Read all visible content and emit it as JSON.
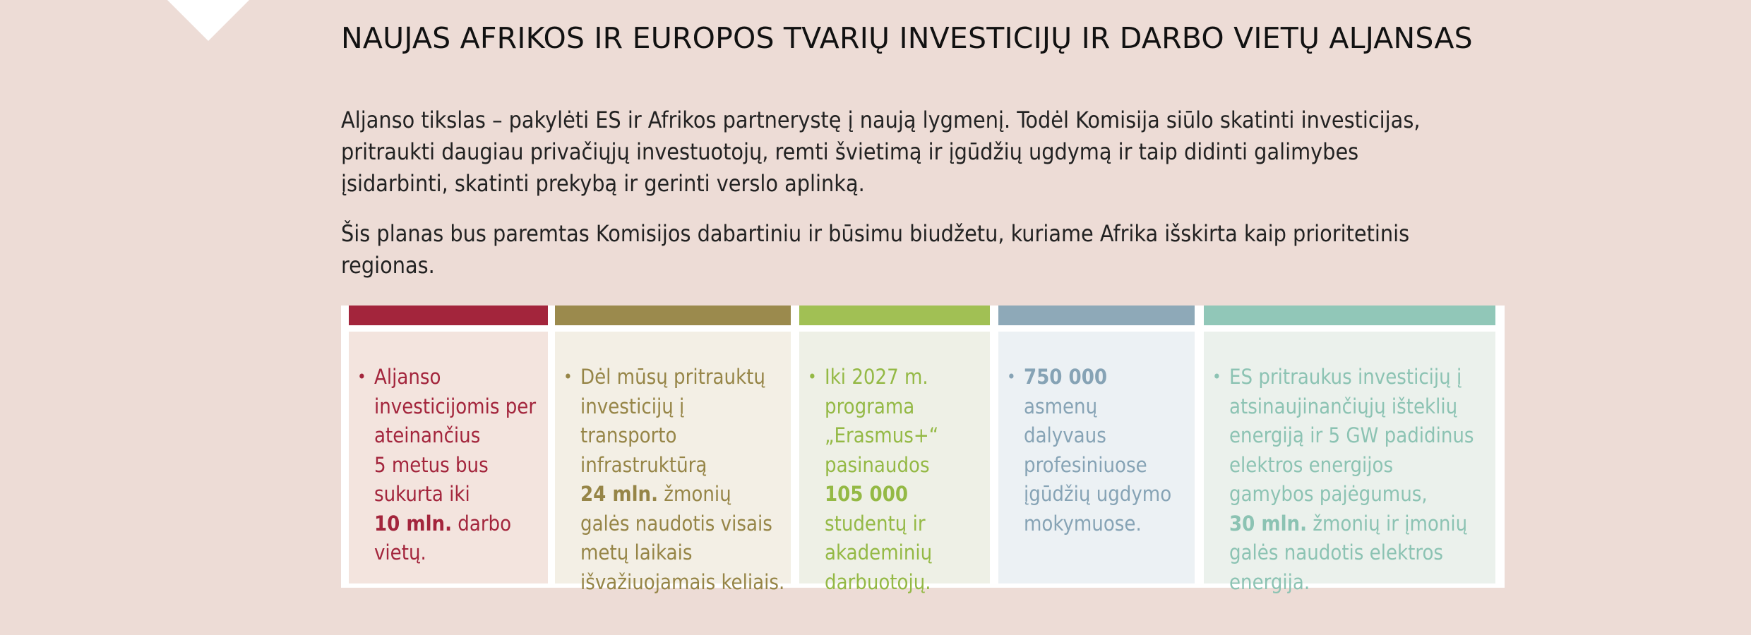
{
  "title": "NAUJAS AFRIKOS IR EUROPOS TVARIŲ INVESTICIJŲ IR DARBO VIETŲ ALJANSAS",
  "paragraphs": [
    {
      "lines": [
        "Aljanso tikslas – pakylėti ES ir Afrikos partnerystę į naują lygmenį. Todėl Komisija siūlo skatinti investicijas,",
        "pritraukti daugiau privačiųjų investuotojų, remti švietimą ir įgūdžių ugdymą ir taip didinti galimybes",
        "įsidarbinti, skatinti prekybą ir gerinti verslo aplinką."
      ]
    },
    {
      "lines": [
        "Šis planas bus paremtas Komisijos dabartiniu ir būsimu biudžetu, kuriame Afrika išskirta kaip prioritetinis",
        "regionas."
      ]
    }
  ],
  "facts": [
    {
      "bar_color": "#a3253c",
      "panel_color": "#f3e4de",
      "text_color": "#a3253c",
      "bullet": "•",
      "lines": [
        {
          "text": "Aljanso"
        },
        {
          "text": "investicijomis per"
        },
        {
          "text": "ateinančius"
        },
        {
          "text": "5 metus bus"
        },
        {
          "text": "sukurta iki"
        },
        {
          "bold": "10 mln.",
          "text": " darbo"
        },
        {
          "text": "vietų."
        }
      ]
    },
    {
      "bar_color": "#9b8a4d",
      "panel_color": "#f3efe5",
      "text_color": "#968547",
      "bullet": "•",
      "lines": [
        {
          "text": "Dėl mūsų pritrauktų"
        },
        {
          "text": "investicijų į"
        },
        {
          "text": "transporto"
        },
        {
          "text": "infrastruktūrą"
        },
        {
          "bold": "24 mln.",
          "text": " žmonių"
        },
        {
          "text": "galės naudotis visais"
        },
        {
          "text": "metų laikais"
        },
        {
          "text": "išvažiuojamais keliais."
        }
      ]
    },
    {
      "bar_color": "#a1c054",
      "panel_color": "#eef0e6",
      "text_color": "#94b945",
      "bullet": "•",
      "lines": [
        {
          "text": "Iki 2027 m."
        },
        {
          "text": "programa"
        },
        {
          "text": "„Erasmus+“"
        },
        {
          "text": "pasinaudos"
        },
        {
          "bold": "105 000",
          "text": ""
        },
        {
          "text": "studentų ir"
        },
        {
          "text": "akademinių"
        },
        {
          "text": "darbuotojų."
        }
      ]
    },
    {
      "bar_color": "#8ea9b8",
      "panel_color": "#ecf1f4",
      "text_color": "#86a3b5",
      "bullet": "•",
      "lines": [
        {
          "bold": "750 000",
          "text": ""
        },
        {
          "text": "asmenų"
        },
        {
          "text": "dalyvaus"
        },
        {
          "text": "profesiniuose"
        },
        {
          "text": "įgūdžių ugdymo"
        },
        {
          "text": "mokymuose."
        }
      ]
    },
    {
      "bar_color": "#91c7b8",
      "panel_color": "#ebf1ec",
      "text_color": "#8cc3b3",
      "bullet": "•",
      "lines": [
        {
          "text": "ES pritraukus investicijų į"
        },
        {
          "text": "atsinaujinančiųjų išteklių"
        },
        {
          "text": "energiją ir 5 GW padidinus"
        },
        {
          "text": "elektros energijos"
        },
        {
          "text": "gamybos pajėgumus,"
        },
        {
          "bold": "30 mln.",
          "text": " žmonių ir įmonių"
        },
        {
          "text": "galės naudotis elektros"
        },
        {
          "text": "energija."
        }
      ]
    }
  ]
}
